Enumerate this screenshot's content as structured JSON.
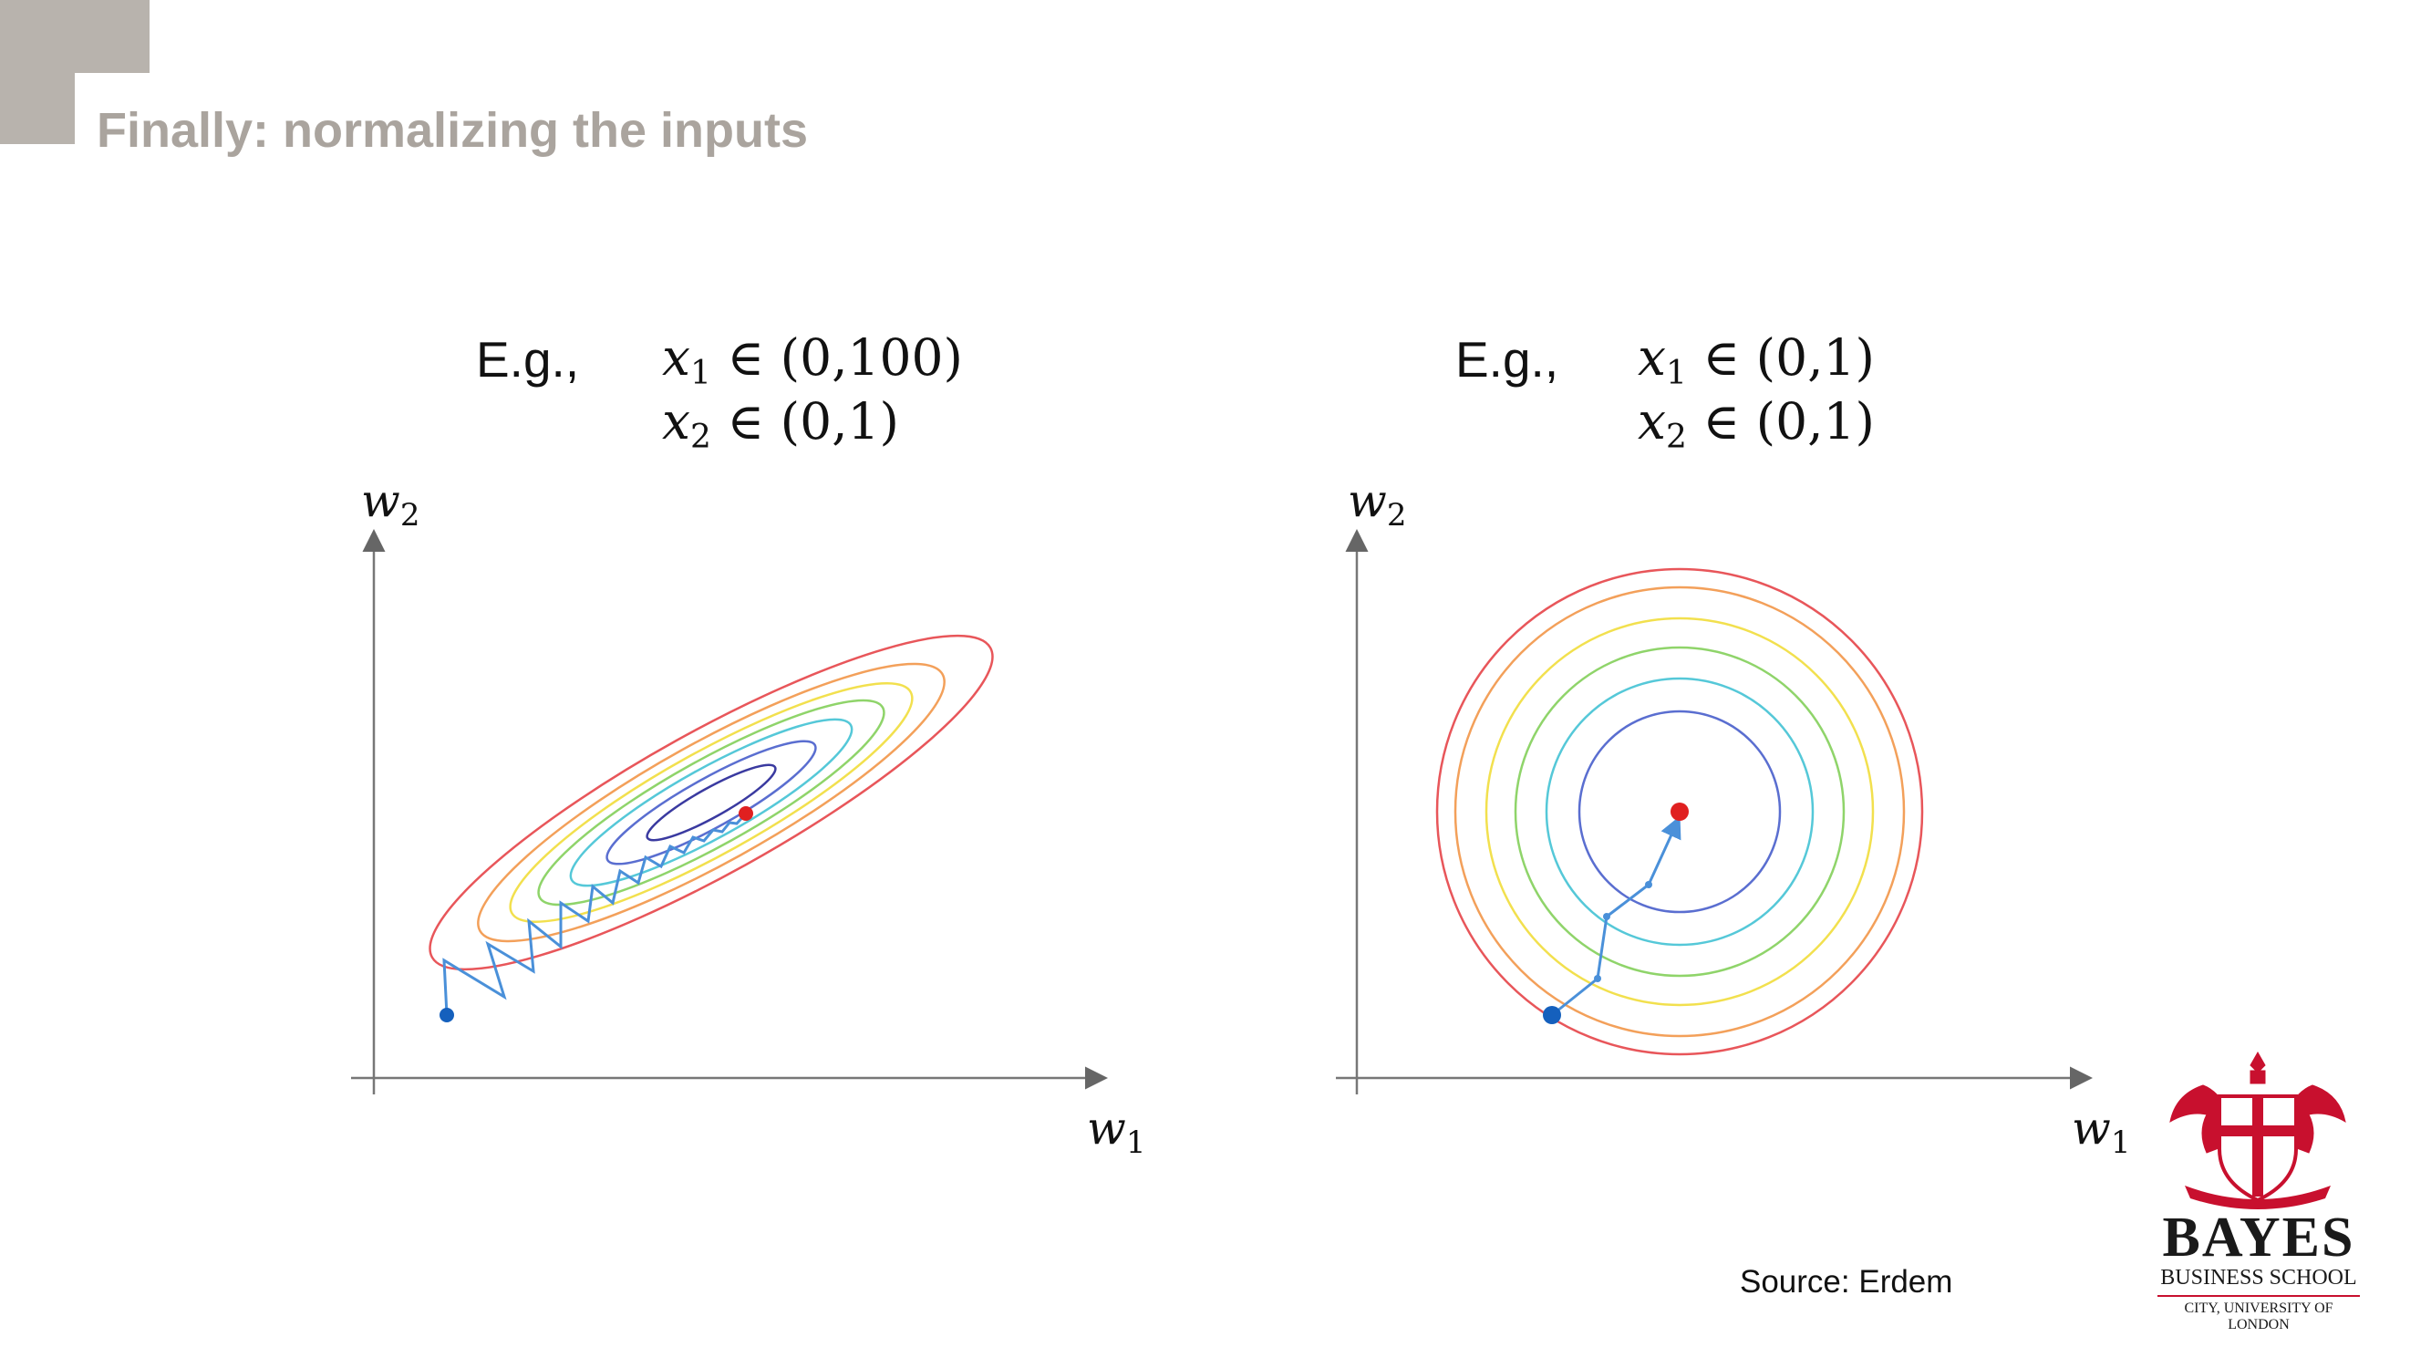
{
  "title": "Finally: normalizing the inputs",
  "left_panel": {
    "eg_label": "E.g.,",
    "x1_var": "x",
    "x1_sub": "1",
    "x1_range": " ∈ (0,100)",
    "x2_var": "x",
    "x2_sub": "2",
    "x2_range": " ∈ (0,1)",
    "y_axis_var": "w",
    "y_axis_sub": "2",
    "x_axis_var": "w",
    "x_axis_sub": "1"
  },
  "right_panel": {
    "eg_label": "E.g.,",
    "x1_var": "x",
    "x1_sub": "1",
    "x1_range": " ∈ (0,1)",
    "x2_var": "x",
    "x2_sub": "2",
    "x2_range": " ∈ (0,1)",
    "y_axis_var": "w",
    "y_axis_sub": "2",
    "x_axis_var": "w",
    "x_axis_sub": "1"
  },
  "source": "Source: Erdem",
  "logo": {
    "name": "BAYES",
    "subtitle": "BUSINESS SCHOOL",
    "university": "CITY, UNIVERSITY OF LONDON",
    "color": "#c8102e"
  },
  "contour_colors": [
    "#e8565a",
    "#f3a05a",
    "#f2e04e",
    "#8fd46a",
    "#55c8d8",
    "#5a6ed0",
    "#3a3aa0"
  ],
  "path_color": "#4a90d9",
  "start_color": "#1560bd",
  "minimum_color": "#e02020"
}
